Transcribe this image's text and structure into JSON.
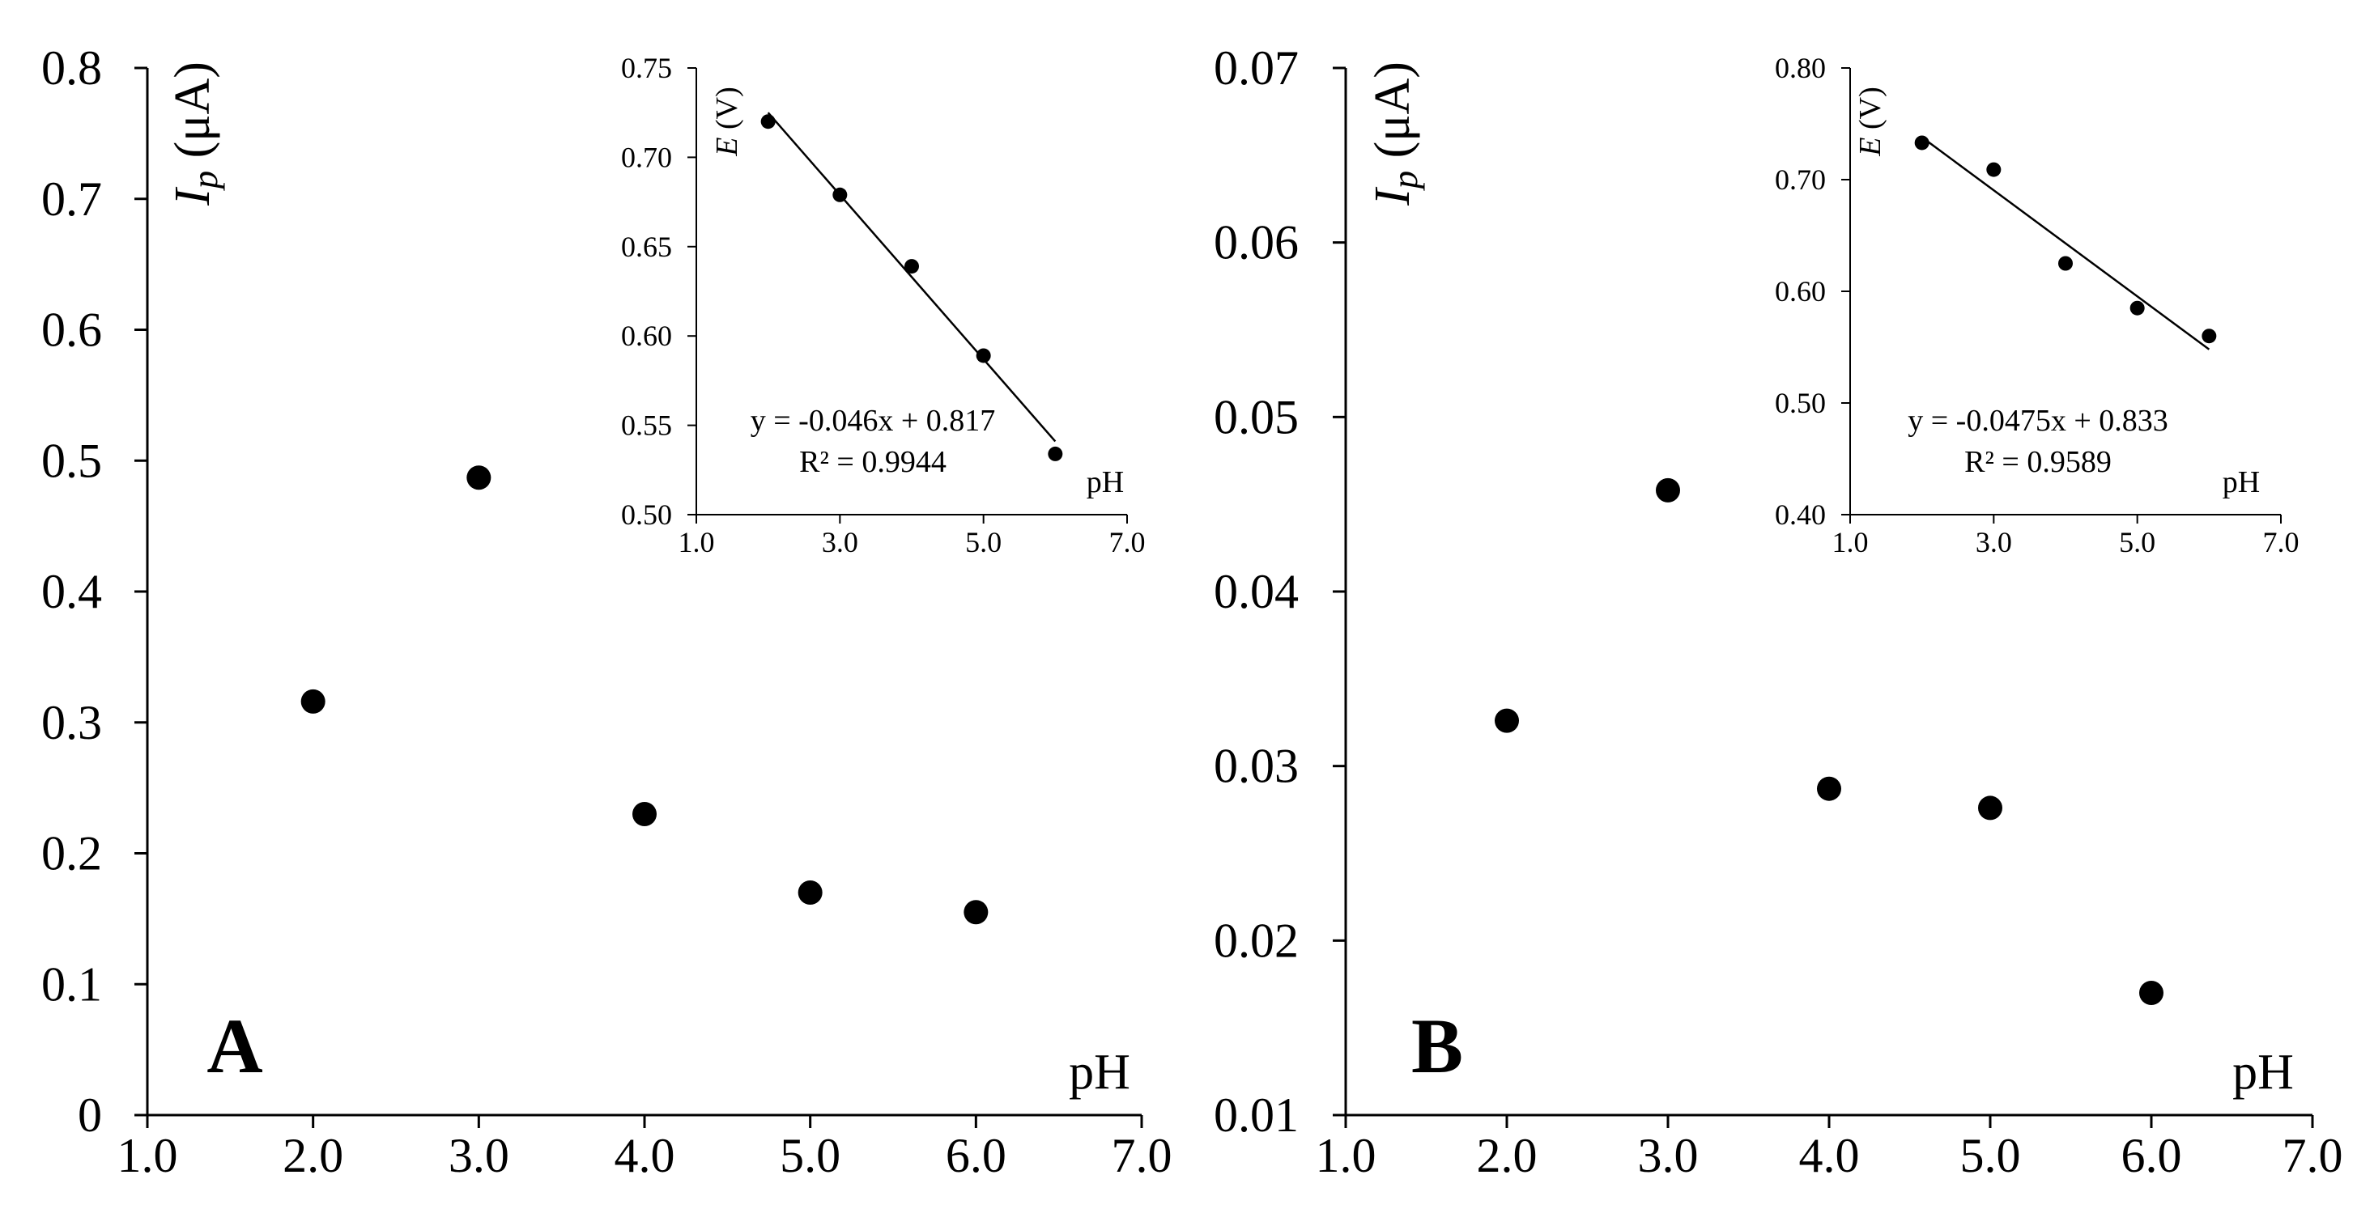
{
  "colors": {
    "marker": "#000000",
    "axis": "#000000",
    "background": "#ffffff"
  },
  "chart_data": [
    {
      "id": "A-main",
      "type": "scatter",
      "panel_label": "A",
      "ylabel": {
        "symbol": "I",
        "subscript": "p",
        "unit": " (μA)"
      },
      "xlabel": "pH",
      "xlim": [
        1.0,
        7.0
      ],
      "ylim": [
        0,
        0.8
      ],
      "xticks": [
        "1.0",
        "2.0",
        "3.0",
        "4.0",
        "5.0",
        "6.0",
        "7.0"
      ],
      "yticks": [
        "0",
        "0.1",
        "0.2",
        "0.3",
        "0.4",
        "0.5",
        "0.6",
        "0.7",
        "0.8"
      ],
      "x": [
        2,
        3,
        4,
        5,
        6
      ],
      "y": [
        0.316,
        0.487,
        0.23,
        0.17,
        0.155
      ],
      "grid": false
    },
    {
      "id": "A-inset",
      "type": "scatter",
      "ylabel": {
        "symbol": "E",
        "unit": " (V)"
      },
      "xlabel": "pH",
      "xlim": [
        1.0,
        7.0
      ],
      "ylim": [
        0.5,
        0.75
      ],
      "xticks": [
        "1.0",
        "3.0",
        "5.0",
        "7.0"
      ],
      "yticks": [
        "0.50",
        "0.55",
        "0.60",
        "0.65",
        "0.70",
        "0.75"
      ],
      "x": [
        2,
        3,
        4,
        5,
        6
      ],
      "y": [
        0.72,
        0.679,
        0.639,
        0.589,
        0.534
      ],
      "trendline": {
        "slope": -0.046,
        "intercept": 0.817
      },
      "equation": "y = -0.046x + 0.817",
      "r2": "R² = 0.9944",
      "grid": false
    },
    {
      "id": "B-main",
      "type": "scatter",
      "panel_label": "B",
      "ylabel": {
        "symbol": "I",
        "subscript": "p",
        "unit": " (μA)"
      },
      "xlabel": "pH",
      "xlim": [
        1.0,
        7.0
      ],
      "ylim": [
        0.01,
        0.07
      ],
      "xticks": [
        "1.0",
        "2.0",
        "3.0",
        "4.0",
        "5.0",
        "6.0",
        "7.0"
      ],
      "yticks": [
        "0.01",
        "0.02",
        "0.03",
        "0.04",
        "0.05",
        "0.06",
        "0.07"
      ],
      "x": [
        2,
        3,
        4,
        5,
        6
      ],
      "y": [
        0.0326,
        0.0458,
        0.0287,
        0.0276,
        0.017
      ],
      "grid": false
    },
    {
      "id": "B-inset",
      "type": "scatter",
      "ylabel": {
        "symbol": "E",
        "unit": " (V)"
      },
      "xlabel": "pH",
      "xlim": [
        1.0,
        7.0
      ],
      "ylim": [
        0.4,
        0.8
      ],
      "xticks": [
        "1.0",
        "3.0",
        "5.0",
        "7.0"
      ],
      "yticks": [
        "0.40",
        "0.50",
        "0.60",
        "0.70",
        "0.80"
      ],
      "x": [
        2,
        3,
        4,
        5,
        6
      ],
      "y": [
        0.733,
        0.709,
        0.625,
        0.585,
        0.56
      ],
      "trendline": {
        "slope": -0.0475,
        "intercept": 0.833
      },
      "equation": "y = -0.0475x + 0.833",
      "r2": "R² = 0.9589",
      "grid": false
    }
  ]
}
